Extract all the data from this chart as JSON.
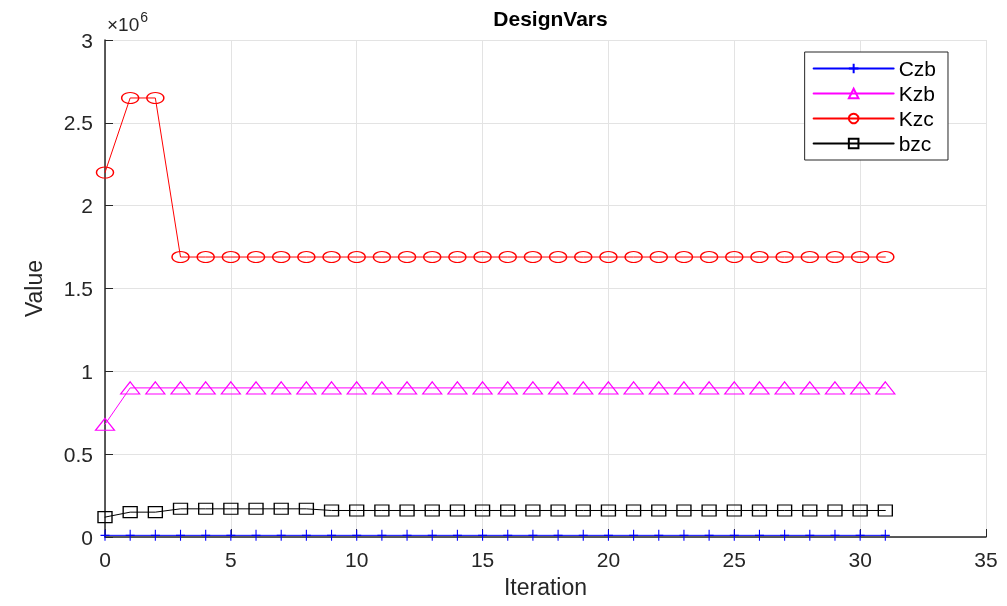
{
  "chart_data": {
    "type": "line",
    "title": "DesignVars",
    "xlabel": "Iteration",
    "ylabel": "Value",
    "annotations": [
      "×10$^{6}$"
    ],
    "x": [
      0,
      1,
      2,
      3,
      4,
      5,
      6,
      7,
      8,
      9,
      10,
      11,
      12,
      13,
      14,
      15,
      16,
      17,
      18,
      19,
      20,
      21,
      22,
      23,
      24,
      25,
      26,
      27,
      28,
      29,
      30,
      31
    ],
    "series": [
      {
        "name": "Czb",
        "color": "#0000ff",
        "marker": "cross",
        "values": [
          0.01,
          0.01,
          0.01,
          0.01,
          0.01,
          0.01,
          0.01,
          0.01,
          0.01,
          0.01,
          0.01,
          0.01,
          0.01,
          0.01,
          0.01,
          0.01,
          0.01,
          0.01,
          0.01,
          0.01,
          0.01,
          0.01,
          0.01,
          0.01,
          0.01,
          0.01,
          0.01,
          0.01,
          0.01,
          0.01,
          0.01,
          0.01
        ]
      },
      {
        "name": "Kzb",
        "color": "#ff00ff",
        "marker": "triangle",
        "values": [
          0.68,
          0.9,
          0.9,
          0.9,
          0.9,
          0.9,
          0.9,
          0.9,
          0.9,
          0.9,
          0.9,
          0.9,
          0.9,
          0.9,
          0.9,
          0.9,
          0.9,
          0.9,
          0.9,
          0.9,
          0.9,
          0.9,
          0.9,
          0.9,
          0.9,
          0.9,
          0.9,
          0.9,
          0.9,
          0.9,
          0.9,
          0.9
        ]
      },
      {
        "name": "Kzc",
        "color": "#ff0000",
        "marker": "circle",
        "values": [
          2.2,
          2.65,
          2.65,
          1.69,
          1.69,
          1.69,
          1.69,
          1.69,
          1.69,
          1.69,
          1.69,
          1.69,
          1.69,
          1.69,
          1.69,
          1.69,
          1.69,
          1.69,
          1.69,
          1.69,
          1.69,
          1.69,
          1.69,
          1.69,
          1.69,
          1.69,
          1.69,
          1.69,
          1.69,
          1.69,
          1.69,
          1.69
        ]
      },
      {
        "name": "bzc",
        "color": "#000000",
        "marker": "square",
        "values": [
          0.12,
          0.15,
          0.15,
          0.17,
          0.17,
          0.17,
          0.17,
          0.17,
          0.17,
          0.16,
          0.16,
          0.16,
          0.16,
          0.16,
          0.16,
          0.16,
          0.16,
          0.16,
          0.16,
          0.16,
          0.16,
          0.16,
          0.16,
          0.16,
          0.16,
          0.16,
          0.16,
          0.16,
          0.16,
          0.16,
          0.16,
          0.16
        ]
      }
    ],
    "xlim": [
      0,
      35
    ],
    "xticks": [
      0,
      5,
      10,
      15,
      20,
      25,
      30,
      35
    ],
    "ylim": [
      0,
      3
    ],
    "yticks": [
      0,
      0.5,
      1,
      1.5,
      2,
      2.5,
      3
    ],
    "grid": true,
    "legend": "top right",
    "line_style": "solid"
  }
}
